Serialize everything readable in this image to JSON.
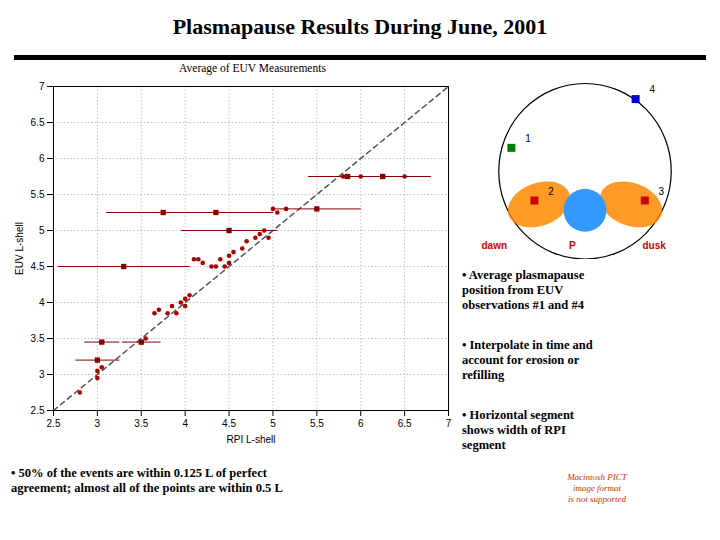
{
  "chart_data": {
    "type": "scatter",
    "title": "Plasmapause Results During June, 2001",
    "subtitle": "Average of EUV Measurements",
    "x_label": "RPI L-shell",
    "y_label": "EUV L-shell",
    "xlim": [
      2.5,
      7.0
    ],
    "ylim": [
      2.5,
      7.0
    ],
    "xticks": [
      2.5,
      3,
      3.5,
      4,
      4.5,
      5,
      5.5,
      6,
      6.5,
      7
    ],
    "yticks": [
      2.5,
      3,
      3.5,
      4,
      4.5,
      5,
      5.5,
      6,
      6.5,
      7
    ],
    "grid": true,
    "series": [
      {
        "type": "line",
        "color": "#555555",
        "line_style": "dashed",
        "x": [
          2.5,
          7.0
        ],
        "values": [
          2.5,
          7.0
        ]
      },
      {
        "type": "scatter",
        "color": "#aa0000",
        "marker": "circle",
        "x": [
          2.8,
          3.0,
          3.0,
          3.05,
          3.5,
          3.55,
          3.65,
          3.7,
          3.8,
          3.85,
          3.9,
          3.95,
          4.0,
          4.0,
          4.05,
          4.1,
          4.15,
          4.2,
          4.3,
          4.35,
          4.4,
          4.45,
          4.5,
          4.5,
          4.55,
          4.65,
          4.7,
          4.8,
          4.85,
          4.9,
          4.95,
          5.0,
          5.05,
          5.15,
          5.8,
          6.0,
          6.5
        ],
        "values": [
          2.75,
          2.95,
          3.05,
          3.1,
          3.45,
          3.5,
          3.85,
          3.9,
          3.85,
          3.95,
          3.85,
          4.0,
          4.05,
          3.95,
          4.1,
          4.6,
          4.6,
          4.55,
          4.5,
          4.5,
          4.6,
          4.5,
          4.55,
          4.65,
          4.7,
          4.75,
          4.85,
          4.9,
          4.95,
          5.0,
          4.9,
          5.3,
          5.25,
          5.3,
          5.75,
          5.75,
          5.75
        ]
      },
      {
        "type": "errorbar",
        "color": "#880000",
        "marker": "square",
        "x": [
          3.0,
          3.05,
          3.5,
          3.3,
          3.75,
          4.35,
          4.5,
          5.5,
          5.85,
          6.25
        ],
        "values": [
          3.2,
          3.45,
          3.45,
          4.5,
          5.25,
          5.25,
          5.0,
          5.3,
          5.75,
          5.75
        ],
        "xerr": [
          0.25,
          0.2,
          0.22,
          0.75,
          0.65,
          0.65,
          0.55,
          0.5,
          0.45,
          0.55
        ]
      }
    ],
    "annotations": [
      "1",
      "2",
      "3",
      "4",
      "dawn",
      "P",
      "dusk",
      "• Average plasmapause\nposition from EUV\nobservations #1 and #4",
      "• Interpolate in time and\naccount for erosion or\nrefilling",
      "• Horizontal segment\nshows width of RPI\nsegment",
      "Macintosh PICT\nimage format\nis not supported",
      "• 50% of the events are within 0.125 L of perfect\nagreement; almost all of the points are within 0.5 L"
    ]
  }
}
